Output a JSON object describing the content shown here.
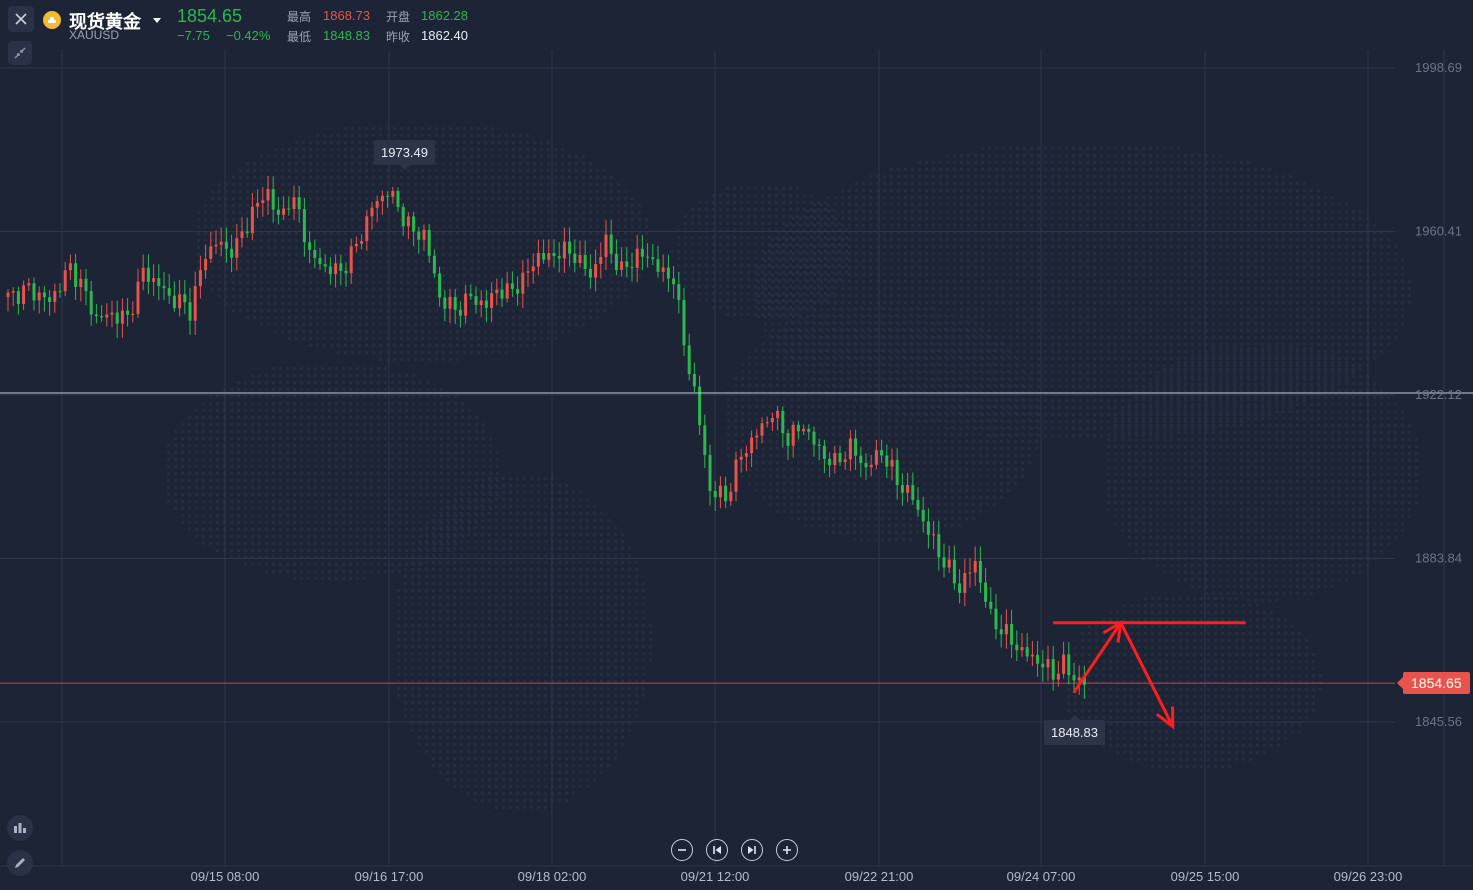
{
  "header": {
    "instrument_name": "现货黄金",
    "symbol": "XAUUSD",
    "last_price": "1854.65",
    "change": "−7.75",
    "change_pct": "−0.42%",
    "high_label": "最高",
    "high_value": "1868.73",
    "open_label": "开盘",
    "open_value": "1862.28",
    "low_label": "最低",
    "low_value": "1848.83",
    "prev_close_label": "昨收",
    "prev_close_value": "1862.40"
  },
  "colors": {
    "background": "#1d2436",
    "up": "#e8544c",
    "down": "#2db84d",
    "grid": "#2e364a",
    "annotation": "#ff1f1f"
  },
  "toolbar": {
    "icons": [
      "close-icon",
      "collapse-icon",
      "indicator-icon",
      "draw-pencil-icon"
    ]
  },
  "navigation": {
    "icons": [
      "zoom-out-icon",
      "jump-start-icon",
      "jump-end-icon",
      "zoom-in-icon"
    ]
  },
  "chart_data": {
    "type": "candlestick",
    "y_ticks": [
      "1998.69",
      "1960.41",
      "1922.12",
      "1883.84",
      "1845.56"
    ],
    "x_ticks": [
      "09/15 08:00",
      "09/16 17:00",
      "09/18 02:00",
      "09/21 12:00",
      "09/22 21:00",
      "09/24 07:00",
      "09/25 15:00",
      "09/26 23:00"
    ],
    "ylim": [
      1845.56,
      1998.69
    ],
    "current_price": "1854.65",
    "crosshair_price": 1922.6,
    "max_label": "1973.49",
    "min_label": "1848.83",
    "grid": true,
    "path": [
      [
        0,
        1945
      ],
      [
        4,
        1947
      ],
      [
        8,
        1944
      ],
      [
        12,
        1952
      ],
      [
        14,
        1948
      ],
      [
        17,
        1940
      ],
      [
        20,
        1941
      ],
      [
        23,
        1940
      ],
      [
        26,
        1951
      ],
      [
        29,
        1948
      ],
      [
        31,
        1945
      ],
      [
        33,
        1944
      ],
      [
        35,
        1942
      ],
      [
        38,
        1955
      ],
      [
        40,
        1958
      ],
      [
        42,
        1956
      ],
      [
        44,
        1957
      ],
      [
        47,
        1965
      ],
      [
        50,
        1970
      ],
      [
        52,
        1963
      ],
      [
        54,
        1968
      ],
      [
        56,
        1965
      ],
      [
        58,
        1955
      ],
      [
        61,
        1952
      ],
      [
        64,
        1951
      ],
      [
        67,
        1957
      ],
      [
        70,
        1966
      ],
      [
        73,
        1970
      ],
      [
        76,
        1964
      ],
      [
        78,
        1960
      ],
      [
        80,
        1960
      ],
      [
        83,
        1945
      ],
      [
        86,
        1942
      ],
      [
        89,
        1945
      ],
      [
        92,
        1943
      ],
      [
        94,
        1947
      ],
      [
        96,
        1946
      ],
      [
        99,
        1949
      ],
      [
        102,
        1955
      ],
      [
        104,
        1954
      ],
      [
        106,
        1956
      ],
      [
        109,
        1955
      ],
      [
        112,
        1950
      ],
      [
        115,
        1958
      ],
      [
        118,
        1951
      ],
      [
        121,
        1955
      ],
      [
        124,
        1954
      ],
      [
        126,
        1950
      ],
      [
        128,
        1950
      ],
      [
        130,
        1934
      ],
      [
        132,
        1923
      ],
      [
        135,
        1900
      ],
      [
        138,
        1898
      ],
      [
        141,
        1908
      ],
      [
        144,
        1913
      ],
      [
        147,
        1918
      ],
      [
        150,
        1912
      ],
      [
        153,
        1915
      ],
      [
        156,
        1909
      ],
      [
        159,
        1906
      ],
      [
        162,
        1910
      ],
      [
        165,
        1905
      ],
      [
        168,
        1909
      ],
      [
        171,
        1902
      ],
      [
        174,
        1898
      ],
      [
        177,
        1890
      ],
      [
        180,
        1883
      ],
      [
        183,
        1877
      ],
      [
        186,
        1883
      ],
      [
        189,
        1870
      ],
      [
        192,
        1866
      ],
      [
        195,
        1862
      ],
      [
        198,
        1860
      ],
      [
        201,
        1857
      ],
      [
        203,
        1859
      ],
      [
        205,
        1856
      ],
      [
        207,
        1854.65
      ]
    ],
    "annotations": [
      {
        "type": "horizontal-line",
        "price": 1868.8,
        "from_bar": 201,
        "to_bar": 238
      },
      {
        "type": "arrow",
        "from": [
          205,
          1852.5
        ],
        "to": [
          214,
          1868.8
        ]
      },
      {
        "type": "arrow",
        "from": [
          214,
          1868.8
        ],
        "to": [
          224,
          1844.5
        ]
      }
    ]
  }
}
